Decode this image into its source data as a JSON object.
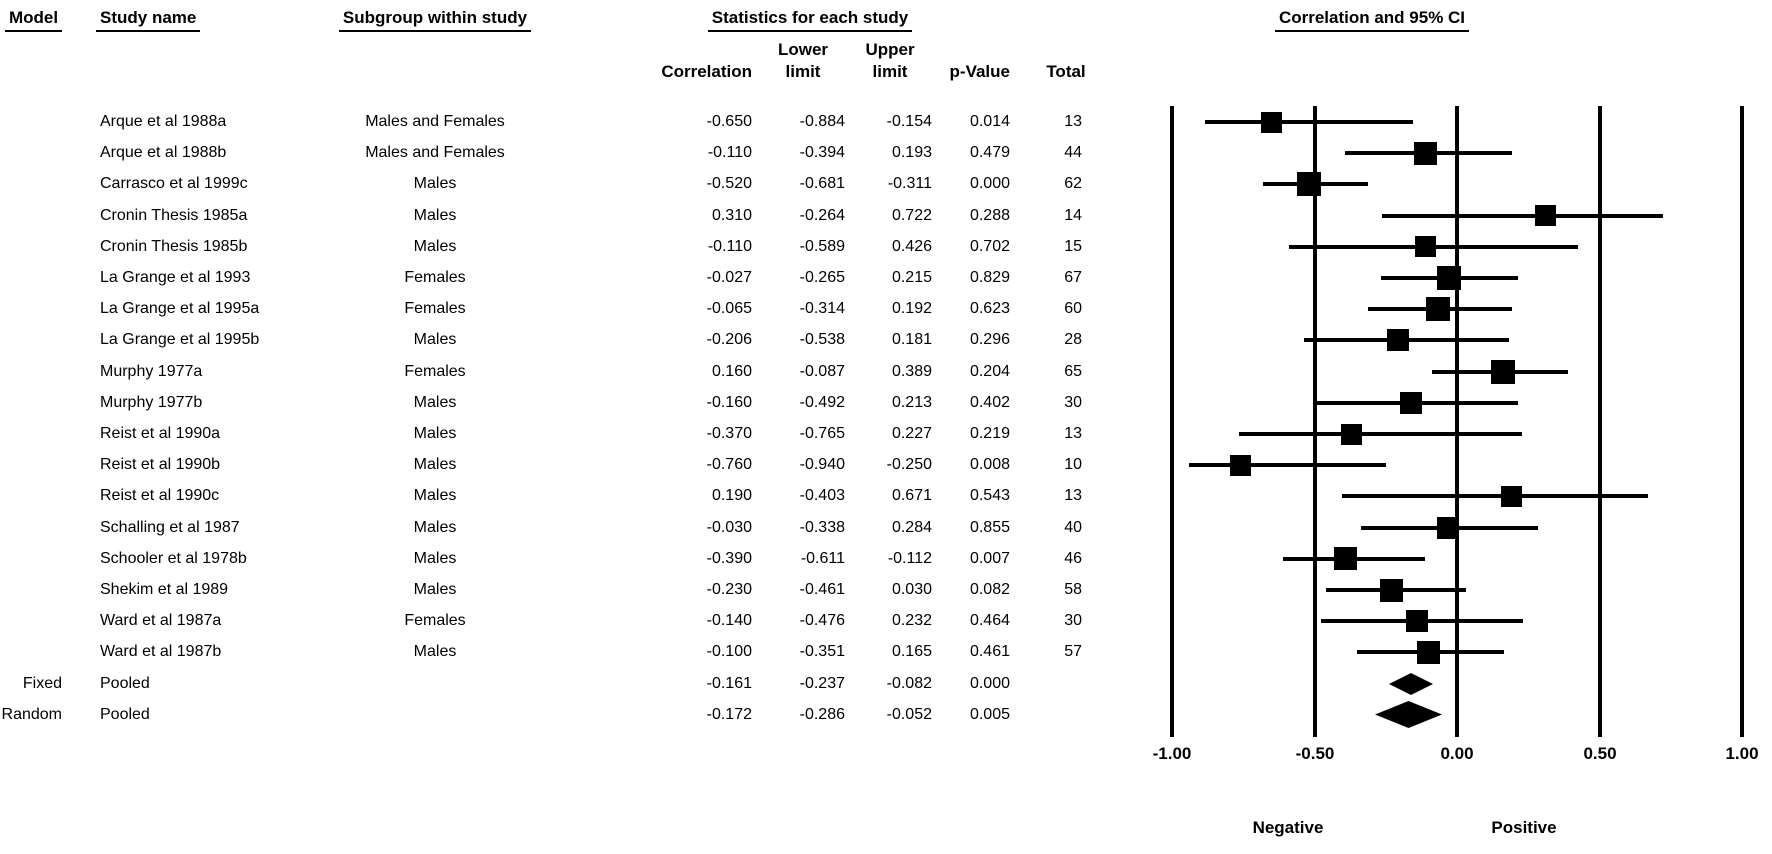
{
  "colors": {
    "ink": "#000000",
    "background": "#ffffff"
  },
  "table": {
    "model_header": "Model",
    "study_header": "Study name",
    "subgroup_header": "Subgroup within study",
    "stats_header": "Statistics for each study",
    "col_correlation": "Correlation",
    "col_lower_line1": "Lower",
    "col_lower_line2": "limit",
    "col_upper_line1": "Upper",
    "col_upper_line2": "limit",
    "col_p_value": "p-Value",
    "col_total": "Total",
    "rows": [
      {
        "model": "",
        "study": "Arque et al 1988a",
        "subgroup": "Males and Females",
        "correlation": "-0.650",
        "lower": "-0.884",
        "upper": "-0.154",
        "p_value": "0.014",
        "total": "13"
      },
      {
        "model": "",
        "study": "Arque et al 1988b",
        "subgroup": "Males and Females",
        "correlation": "-0.110",
        "lower": "-0.394",
        "upper": "0.193",
        "p_value": "0.479",
        "total": "44"
      },
      {
        "model": "",
        "study": "Carrasco et al 1999c",
        "subgroup": "Males",
        "correlation": "-0.520",
        "lower": "-0.681",
        "upper": "-0.311",
        "p_value": "0.000",
        "total": "62"
      },
      {
        "model": "",
        "study": "Cronin Thesis 1985a",
        "subgroup": "Males",
        "correlation": "0.310",
        "lower": "-0.264",
        "upper": "0.722",
        "p_value": "0.288",
        "total": "14"
      },
      {
        "model": "",
        "study": "Cronin Thesis 1985b",
        "subgroup": "Males",
        "correlation": "-0.110",
        "lower": "-0.589",
        "upper": "0.426",
        "p_value": "0.702",
        "total": "15"
      },
      {
        "model": "",
        "study": "La Grange et al 1993",
        "subgroup": "Females",
        "correlation": "-0.027",
        "lower": "-0.265",
        "upper": "0.215",
        "p_value": "0.829",
        "total": "67"
      },
      {
        "model": "",
        "study": "La Grange et al 1995a",
        "subgroup": "Females",
        "correlation": "-0.065",
        "lower": "-0.314",
        "upper": "0.192",
        "p_value": "0.623",
        "total": "60"
      },
      {
        "model": "",
        "study": "La Grange et al 1995b",
        "subgroup": "Males",
        "correlation": "-0.206",
        "lower": "-0.538",
        "upper": "0.181",
        "p_value": "0.296",
        "total": "28"
      },
      {
        "model": "",
        "study": "Murphy 1977a",
        "subgroup": "Females",
        "correlation": "0.160",
        "lower": "-0.087",
        "upper": "0.389",
        "p_value": "0.204",
        "total": "65"
      },
      {
        "model": "",
        "study": "Murphy 1977b",
        "subgroup": "Males",
        "correlation": "-0.160",
        "lower": "-0.492",
        "upper": "0.213",
        "p_value": "0.402",
        "total": "30"
      },
      {
        "model": "",
        "study": "Reist et al 1990a",
        "subgroup": "Males",
        "correlation": "-0.370",
        "lower": "-0.765",
        "upper": "0.227",
        "p_value": "0.219",
        "total": "13"
      },
      {
        "model": "",
        "study": "Reist et al 1990b",
        "subgroup": "Males",
        "correlation": "-0.760",
        "lower": "-0.940",
        "upper": "-0.250",
        "p_value": "0.008",
        "total": "10"
      },
      {
        "model": "",
        "study": "Reist et al 1990c",
        "subgroup": "Males",
        "correlation": "0.190",
        "lower": "-0.403",
        "upper": "0.671",
        "p_value": "0.543",
        "total": "13"
      },
      {
        "model": "",
        "study": "Schalling et al 1987",
        "subgroup": "Males",
        "correlation": "-0.030",
        "lower": "-0.338",
        "upper": "0.284",
        "p_value": "0.855",
        "total": "40"
      },
      {
        "model": "",
        "study": "Schooler et al 1978b",
        "subgroup": "Males",
        "correlation": "-0.390",
        "lower": "-0.611",
        "upper": "-0.112",
        "p_value": "0.007",
        "total": "46"
      },
      {
        "model": "",
        "study": "Shekim et al 1989",
        "subgroup": "Males",
        "correlation": "-0.230",
        "lower": "-0.461",
        "upper": "0.030",
        "p_value": "0.082",
        "total": "58"
      },
      {
        "model": "",
        "study": "Ward et al 1987a",
        "subgroup": "Females",
        "correlation": "-0.140",
        "lower": "-0.476",
        "upper": "0.232",
        "p_value": "0.464",
        "total": "30"
      },
      {
        "model": "",
        "study": "Ward et al 1987b",
        "subgroup": "Males",
        "correlation": "-0.100",
        "lower": "-0.351",
        "upper": "0.165",
        "p_value": "0.461",
        "total": "57"
      },
      {
        "model": "Fixed",
        "study": "Pooled",
        "subgroup": "",
        "correlation": "-0.161",
        "lower": "-0.237",
        "upper": "-0.082",
        "p_value": "0.000",
        "total": ""
      },
      {
        "model": "Random",
        "study": "Pooled",
        "subgroup": "",
        "correlation": "-0.172",
        "lower": "-0.286",
        "upper": "-0.052",
        "p_value": "0.005",
        "total": ""
      }
    ]
  },
  "plot": {
    "title": "Correlation and 95% CI",
    "tick_labels": [
      "-1.00",
      "-0.50",
      "0.00",
      "0.50",
      "1.00"
    ],
    "negative_label": "Negative",
    "positive_label": "Positive"
  },
  "chart_data": {
    "type": "scatter",
    "subtype": "forest_plot",
    "title": "Correlation and 95% CI",
    "effect_measure": "Correlation",
    "x_axis": {
      "range": [
        -1.0,
        1.0
      ],
      "ticks": [
        -1.0,
        -0.5,
        0.0,
        0.5,
        1.0
      ],
      "tick_labels": [
        "-1.00",
        "-0.50",
        "0.00",
        "0.50",
        "1.00"
      ],
      "negative_direction_label": "Negative",
      "positive_direction_label": "Positive"
    },
    "studies": [
      {
        "study": "Arque et al 1988a",
        "subgroup": "Males and Females",
        "correlation": -0.65,
        "lower": -0.884,
        "upper": -0.154,
        "p_value": 0.014,
        "total": 13
      },
      {
        "study": "Arque et al 1988b",
        "subgroup": "Males and Females",
        "correlation": -0.11,
        "lower": -0.394,
        "upper": 0.193,
        "p_value": 0.479,
        "total": 44
      },
      {
        "study": "Carrasco et al 1999c",
        "subgroup": "Males",
        "correlation": -0.52,
        "lower": -0.681,
        "upper": -0.311,
        "p_value": 0.0,
        "total": 62
      },
      {
        "study": "Cronin Thesis 1985a",
        "subgroup": "Males",
        "correlation": 0.31,
        "lower": -0.264,
        "upper": 0.722,
        "p_value": 0.288,
        "total": 14
      },
      {
        "study": "Cronin Thesis 1985b",
        "subgroup": "Males",
        "correlation": -0.11,
        "lower": -0.589,
        "upper": 0.426,
        "p_value": 0.702,
        "total": 15
      },
      {
        "study": "La Grange et al 1993",
        "subgroup": "Females",
        "correlation": -0.027,
        "lower": -0.265,
        "upper": 0.215,
        "p_value": 0.829,
        "total": 67
      },
      {
        "study": "La Grange et al 1995a",
        "subgroup": "Females",
        "correlation": -0.065,
        "lower": -0.314,
        "upper": 0.192,
        "p_value": 0.623,
        "total": 60
      },
      {
        "study": "La Grange et al 1995b",
        "subgroup": "Males",
        "correlation": -0.206,
        "lower": -0.538,
        "upper": 0.181,
        "p_value": 0.296,
        "total": 28
      },
      {
        "study": "Murphy 1977a",
        "subgroup": "Females",
        "correlation": 0.16,
        "lower": -0.087,
        "upper": 0.389,
        "p_value": 0.204,
        "total": 65
      },
      {
        "study": "Murphy 1977b",
        "subgroup": "Males",
        "correlation": -0.16,
        "lower": -0.492,
        "upper": 0.213,
        "p_value": 0.402,
        "total": 30
      },
      {
        "study": "Reist et al 1990a",
        "subgroup": "Males",
        "correlation": -0.37,
        "lower": -0.765,
        "upper": 0.227,
        "p_value": 0.219,
        "total": 13
      },
      {
        "study": "Reist et al 1990b",
        "subgroup": "Males",
        "correlation": -0.76,
        "lower": -0.94,
        "upper": -0.25,
        "p_value": 0.008,
        "total": 10
      },
      {
        "study": "Reist et al 1990c",
        "subgroup": "Males",
        "correlation": 0.19,
        "lower": -0.403,
        "upper": 0.671,
        "p_value": 0.543,
        "total": 13
      },
      {
        "study": "Schalling et al 1987",
        "subgroup": "Males",
        "correlation": -0.03,
        "lower": -0.338,
        "upper": 0.284,
        "p_value": 0.855,
        "total": 40
      },
      {
        "study": "Schooler et al 1978b",
        "subgroup": "Males",
        "correlation": -0.39,
        "lower": -0.611,
        "upper": -0.112,
        "p_value": 0.007,
        "total": 46
      },
      {
        "study": "Shekim et al 1989",
        "subgroup": "Males",
        "correlation": -0.23,
        "lower": -0.461,
        "upper": 0.03,
        "p_value": 0.082,
        "total": 58
      },
      {
        "study": "Ward et al 1987a",
        "subgroup": "Females",
        "correlation": -0.14,
        "lower": -0.476,
        "upper": 0.232,
        "p_value": 0.464,
        "total": 30
      },
      {
        "study": "Ward et al 1987b",
        "subgroup": "Males",
        "correlation": -0.1,
        "lower": -0.351,
        "upper": 0.165,
        "p_value": 0.461,
        "total": 57
      }
    ],
    "pooled": [
      {
        "model": "Fixed",
        "label": "Pooled",
        "correlation": -0.161,
        "lower": -0.237,
        "upper": -0.082,
        "p_value": 0.0
      },
      {
        "model": "Random",
        "label": "Pooled",
        "correlation": -0.172,
        "lower": -0.286,
        "upper": -0.052,
        "p_value": 0.005
      }
    ]
  }
}
